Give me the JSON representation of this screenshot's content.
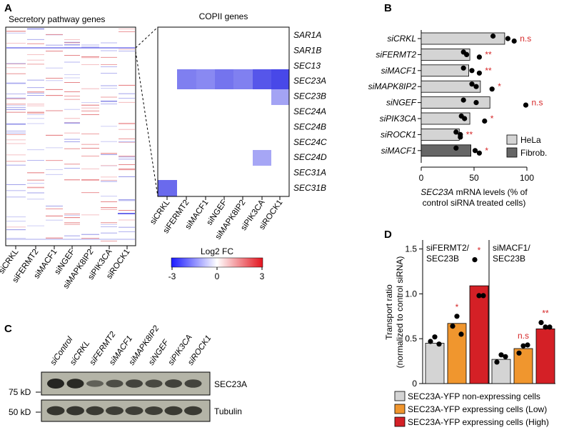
{
  "panels": {
    "a": "A",
    "b": "B",
    "c": "C",
    "d": "D"
  },
  "panel_a": {
    "left_title": "Secretory pathway genes",
    "right_title": "COPII genes",
    "sirnas": [
      "siCRKL",
      "siFERMT2",
      "siMACF1",
      "siNGEF",
      "siMAPK8IP2",
      "siPIK3CA",
      "siROCK1"
    ],
    "copii_genes": [
      "SAR1A",
      "SAR1B",
      "SEC13",
      "SEC23A",
      "SEC23B",
      "SEC24A",
      "SEC24B",
      "SEC24C",
      "SEC24D",
      "SEC31A",
      "SEC31B"
    ],
    "colorbar_title": "Log2 FC",
    "colorbar_ticks": [
      "-3",
      "0",
      "3"
    ],
    "colors": {
      "low": "#1a1aff",
      "mid": "#ffffff",
      "high": "#e3141e"
    }
  },
  "chart_data": [
    {
      "type": "bar",
      "panel": "B",
      "orientation": "horizontal",
      "categories": [
        "siCRKL",
        "siFERMT2",
        "siMACF1",
        "siMAPK8IP2",
        "siNGEF",
        "siPIK3CA",
        "siROCK1",
        "siMACF1"
      ],
      "values": [
        79,
        46,
        45,
        56,
        65,
        46,
        36,
        47
      ],
      "cell_type": [
        "HeLa",
        "HeLa",
        "HeLa",
        "HeLa",
        "HeLa",
        "HeLa",
        "HeLa",
        "Fibrob."
      ],
      "points": [
        [
          68,
          82,
          88
        ],
        [
          40,
          43,
          55
        ],
        [
          40,
          48,
          55
        ],
        [
          48,
          52,
          67
        ],
        [
          40,
          52,
          99
        ],
        [
          38,
          41,
          60
        ],
        [
          33,
          37,
          37
        ],
        [
          33,
          51,
          55
        ]
      ],
      "significance": [
        "n.s",
        "**",
        "**",
        "*",
        "n.s",
        "*",
        "**",
        "*"
      ],
      "xlabel_gene": "SEC23A",
      "xlabel_rest": " mRNA levels (% of",
      "xlabel_line2": "control siRNA treated cells)",
      "xticks": [
        "0",
        "50",
        "100"
      ],
      "xlim": [
        0,
        100
      ],
      "legend": [
        "HeLa",
        "Fibrob."
      ],
      "colors": {
        "HeLa": "#d4d4d4",
        "Fibrob.": "#666666",
        "sig": "#d62728"
      }
    },
    {
      "type": "bar",
      "panel": "D",
      "groups": [
        "siFERMT2/ SEC23B",
        "siMACF1/ SEC23B"
      ],
      "group_line1": [
        "siFERMT2/",
        "siMACF1/"
      ],
      "group_line2": [
        "SEC23B",
        "SEC23B"
      ],
      "series": [
        {
          "name": "SEC23A-YFP non-expressing cells",
          "values": [
            0.45,
            0.27
          ],
          "points": [
            [
              0.47,
              0.52,
              0.44
            ],
            [
              0.24,
              0.32,
              0.3
            ]
          ],
          "color": "#d4d4d4"
        },
        {
          "name": "SEC23A-YFP expressing cells (Low)",
          "values": [
            0.67,
            0.39
          ],
          "points": [
            [
              0.64,
              0.75,
              0.55
            ],
            [
              0.34,
              0.42,
              0.43
            ]
          ],
          "color": "#f0962e"
        },
        {
          "name": "SEC23A-YFP expressing cells (High)",
          "values": [
            1.09,
            0.61
          ],
          "points": [
            [
              1.38,
              0.98,
              0.98
            ],
            [
              0.68,
              0.63,
              0.63
            ]
          ],
          "color": "#d42026"
        }
      ],
      "significance": [
        [
          "",
          "*",
          "*"
        ],
        [
          "",
          "n.s",
          "**"
        ]
      ],
      "ylabel_line1": "Transport ratio",
      "ylabel_line2": "(normalized to control siRNA)",
      "yticks": [
        "0",
        "0.5",
        "1.0",
        "1.5"
      ],
      "ylim": [
        0,
        1.6
      ],
      "sig_colors": {
        "star": "#d62728"
      }
    }
  ],
  "panel_c": {
    "lanes": [
      "siControl",
      "siCRKL",
      "siFERMT2",
      "siMACF1",
      "siMAPK8IP2",
      "siNGEF",
      "siPIK3CA",
      "siROCK1"
    ],
    "mw_markers": [
      "75 kD",
      "50 kD"
    ],
    "bands": [
      "SEC23A",
      "Tubulin"
    ],
    "sec23a_intensity": [
      1.0,
      0.95,
      0.4,
      0.6,
      0.7,
      0.65,
      0.72,
      0.7
    ],
    "tubulin_intensity": [
      0.85,
      0.85,
      0.8,
      0.75,
      0.75,
      0.75,
      0.8,
      0.8
    ]
  }
}
